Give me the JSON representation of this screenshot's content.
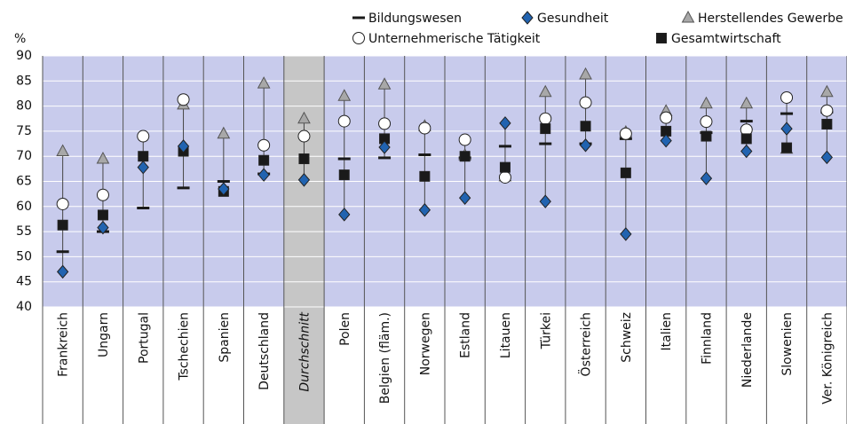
{
  "chart_data": {
    "type": "dot",
    "y_label": "%",
    "ylim": [
      40,
      90
    ],
    "yticks": [
      40,
      45,
      50,
      55,
      60,
      65,
      70,
      75,
      80,
      85,
      90
    ],
    "grid": true,
    "highlight_index": 6,
    "categories": [
      "Frankreich",
      "Ungarn",
      "Portugal",
      "Tschechien",
      "Spanien",
      "Deutschland",
      "Durchschnitt",
      "Polen",
      "Belgien (fläm.)",
      "Norwegen",
      "Estland",
      "Litauen",
      "Türkei",
      "Österreich",
      "Schweiz",
      "Italien",
      "Finnland",
      "Niederlande",
      "Slowenien",
      "Ver. Königreich"
    ],
    "series": [
      {
        "name": "Bildungswesen",
        "marker": "dash",
        "color": "#1a1a1a",
        "values": [
          51,
          55,
          59.7,
          63.7,
          65,
          66.5,
          null,
          69.5,
          69.7,
          70.3,
          69.7,
          72,
          72.5,
          72.5,
          73.5,
          null,
          74.7,
          77,
          78.5,
          78.8
        ]
      },
      {
        "name": "Gesundheit",
        "marker": "diamond",
        "color": "#2163b0",
        "values": [
          47,
          55.8,
          67.8,
          72,
          63.5,
          66.3,
          65.3,
          58.4,
          71.8,
          59.3,
          61.7,
          76.6,
          61,
          72.2,
          54.5,
          73.1,
          65.6,
          71,
          75.5,
          69.8
        ]
      },
      {
        "name": "Herstellendes Gewerbe",
        "marker": "triangle",
        "color": "#a8a8a8",
        "values": [
          71,
          69.5,
          null,
          80.3,
          74.5,
          84.5,
          77.5,
          82,
          84.3,
          76,
          70.2,
          66,
          82.8,
          86.3,
          74.8,
          79,
          80.5,
          80.5,
          71.5,
          82.8
        ]
      },
      {
        "name": "Unternehmerische Tätigkeit",
        "marker": "circle",
        "color": "#ffffff",
        "values": [
          60.5,
          62.3,
          74,
          81.3,
          null,
          72.2,
          74,
          77,
          76.5,
          75.6,
          73.3,
          65.8,
          77.5,
          80.7,
          74.5,
          77.7,
          76.9,
          75.3,
          81.7,
          79.1
        ]
      },
      {
        "name": "Gesamtwirtschaft",
        "marker": "square",
        "color": "#1a1a1a",
        "values": [
          56.3,
          58.3,
          70,
          71,
          63,
          69.2,
          69.5,
          66.3,
          73.5,
          66,
          70,
          67.8,
          75.5,
          76,
          66.7,
          75,
          74,
          73.5,
          71.7,
          76.4
        ]
      }
    ]
  }
}
